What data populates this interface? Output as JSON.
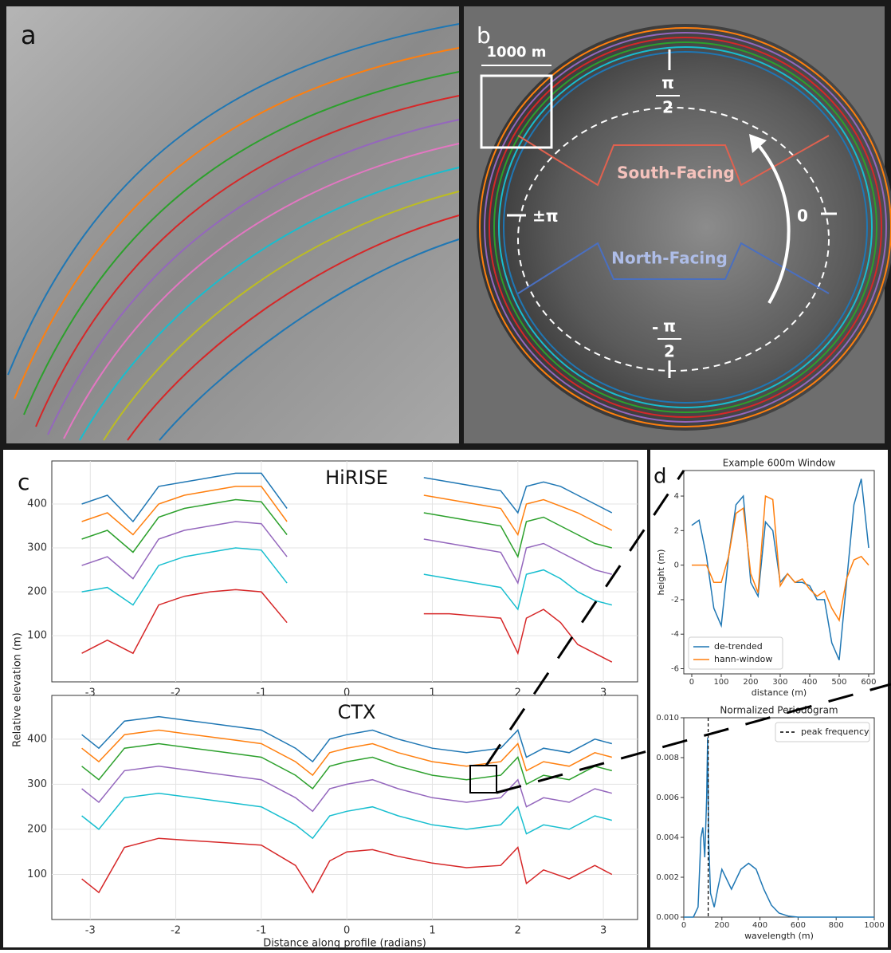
{
  "figure": {
    "panel_labels": [
      "a",
      "b",
      "c",
      "d"
    ],
    "scale_bar": "1000 m",
    "south": "South-Facing",
    "north": "North-Facing",
    "angle_top": {
      "numerator": "π",
      "denominator": "2"
    },
    "angle_left": "±π",
    "angle_right": "0",
    "angle_bottom": {
      "sign": "-",
      "numerator": "π",
      "denominator": "2"
    }
  },
  "chart_data": [
    {
      "type": "line",
      "title": "HiRISE",
      "ylabel": "Relative elevation (m)",
      "grid": true,
      "x": [
        -3.1,
        -2.8,
        -2.5,
        -2.2,
        -1.9,
        -1.6,
        -1.3,
        -1.0,
        -0.7,
        0,
        0.9,
        1.2,
        1.5,
        1.8,
        2.0,
        2.1,
        2.3,
        2.5,
        2.7,
        2.9,
        3.1
      ],
      "xlim": [
        -3.45,
        3.4
      ],
      "xticks": [
        -3,
        -2,
        -1,
        0,
        1,
        2,
        3
      ],
      "ylim": [
        -5,
        498
      ],
      "yticks": [
        100,
        200,
        300,
        400
      ],
      "series": [
        {
          "color": "#1f77b4",
          "values": [
            400,
            420,
            360,
            440,
            450,
            460,
            470,
            470,
            390,
            null,
            460,
            450,
            440,
            430,
            380,
            440,
            450,
            440,
            420,
            400,
            380
          ]
        },
        {
          "color": "#ff7f0e",
          "values": [
            360,
            380,
            330,
            400,
            420,
            430,
            440,
            440,
            360,
            null,
            420,
            410,
            400,
            390,
            330,
            400,
            410,
            395,
            380,
            360,
            340
          ]
        },
        {
          "color": "#2ca02c",
          "values": [
            320,
            340,
            290,
            370,
            390,
            400,
            410,
            405,
            330,
            null,
            380,
            370,
            360,
            350,
            280,
            360,
            370,
            350,
            330,
            310,
            300
          ]
        },
        {
          "color": "#9467bd",
          "values": [
            260,
            280,
            230,
            320,
            340,
            350,
            360,
            355,
            280,
            null,
            320,
            310,
            300,
            290,
            220,
            300,
            310,
            290,
            270,
            250,
            240
          ]
        },
        {
          "color": "#17becf",
          "values": [
            200,
            210,
            170,
            260,
            280,
            290,
            300,
            295,
            220,
            null,
            240,
            230,
            220,
            210,
            160,
            240,
            250,
            230,
            200,
            180,
            170
          ]
        },
        {
          "color": "#d62728",
          "values": [
            60,
            90,
            60,
            170,
            190,
            200,
            205,
            200,
            130,
            null,
            150,
            150,
            145,
            140,
            60,
            140,
            160,
            130,
            80,
            60,
            40
          ]
        }
      ]
    },
    {
      "type": "line",
      "title": "CTX",
      "xlabel": "Distance along profile (radians)",
      "grid": true,
      "x": [
        -3.1,
        -2.9,
        -2.6,
        -2.2,
        -1.8,
        -1.4,
        -1.0,
        -0.6,
        -0.4,
        -0.2,
        0,
        0.3,
        0.6,
        1.0,
        1.4,
        1.8,
        2.0,
        2.1,
        2.3,
        2.6,
        2.9,
        3.1
      ],
      "xlim": [
        -3.45,
        3.4
      ],
      "xticks": [
        -3,
        -2,
        -1,
        0,
        1,
        2,
        3
      ],
      "ylim": [
        0,
        497
      ],
      "yticks": [
        100,
        200,
        300,
        400
      ],
      "series": [
        {
          "color": "#1f77b4",
          "values": [
            410,
            380,
            440,
            450,
            440,
            430,
            420,
            380,
            350,
            400,
            410,
            420,
            400,
            380,
            370,
            380,
            420,
            360,
            380,
            370,
            400,
            390
          ]
        },
        {
          "color": "#ff7f0e",
          "values": [
            380,
            350,
            410,
            420,
            410,
            400,
            390,
            350,
            320,
            370,
            380,
            390,
            370,
            350,
            340,
            350,
            390,
            330,
            350,
            340,
            370,
            360
          ]
        },
        {
          "color": "#2ca02c",
          "values": [
            340,
            310,
            380,
            390,
            380,
            370,
            360,
            320,
            290,
            340,
            350,
            360,
            340,
            320,
            310,
            320,
            360,
            300,
            320,
            310,
            340,
            330
          ]
        },
        {
          "color": "#9467bd",
          "values": [
            290,
            260,
            330,
            340,
            330,
            320,
            310,
            270,
            240,
            290,
            300,
            310,
            290,
            270,
            260,
            270,
            310,
            250,
            270,
            260,
            290,
            280
          ]
        },
        {
          "color": "#17becf",
          "values": [
            230,
            200,
            270,
            280,
            270,
            260,
            250,
            210,
            180,
            230,
            240,
            250,
            230,
            210,
            200,
            210,
            250,
            190,
            210,
            200,
            230,
            220
          ]
        },
        {
          "color": "#d62728",
          "values": [
            90,
            60,
            160,
            180,
            175,
            170,
            165,
            120,
            60,
            130,
            150,
            155,
            140,
            125,
            115,
            120,
            160,
            80,
            110,
            90,
            120,
            100
          ]
        }
      ]
    },
    {
      "type": "line",
      "title": "Example 600m Window",
      "xlabel": "distance (m)",
      "ylabel": "height (m)",
      "grid": false,
      "legend": "lower left",
      "x": [
        0,
        25,
        50,
        75,
        100,
        125,
        150,
        175,
        200,
        225,
        250,
        275,
        300,
        325,
        350,
        375,
        400,
        425,
        450,
        475,
        500,
        525,
        550,
        575,
        600
      ],
      "xlim": [
        -27,
        619
      ],
      "xticks": [
        0,
        100,
        200,
        300,
        400,
        500,
        600
      ],
      "ylim": [
        -6.3,
        5.48
      ],
      "yticks": [
        -6,
        -4,
        -2,
        0,
        2,
        4
      ],
      "series": [
        {
          "name": "de-trended",
          "color": "#1f77b4",
          "values": [
            2.3,
            2.6,
            0.5,
            -2.5,
            -3.5,
            0.5,
            3.5,
            4,
            -1,
            -1.8,
            2.5,
            2,
            -1,
            -0.5,
            -1,
            -1,
            -1.2,
            -2,
            -2,
            -4.5,
            -5.5,
            -1,
            3.5,
            5,
            1
          ]
        },
        {
          "name": "hann-window",
          "color": "#ff7f0e",
          "values": [
            0,
            0,
            0,
            -1,
            -1,
            0.5,
            3,
            3.3,
            -0.5,
            -1.6,
            4,
            3.8,
            -1.2,
            -0.5,
            -1,
            -0.8,
            -1.4,
            -1.8,
            -1.5,
            -2.5,
            -3.2,
            -0.8,
            0.3,
            0.5,
            0
          ]
        }
      ]
    },
    {
      "type": "line",
      "title": "Normalized Periodogram",
      "xlabel": "wavelength (m)",
      "grid": false,
      "legend": "upper right",
      "x": [
        0,
        50,
        75,
        90,
        100,
        110,
        120,
        125,
        130,
        140,
        160,
        180,
        200,
        220,
        250,
        280,
        300,
        340,
        380,
        420,
        460,
        500,
        550,
        600,
        1000
      ],
      "xlim": [
        0,
        1000
      ],
      "xticks": [
        0,
        200,
        400,
        600,
        800,
        1000
      ],
      "ylim": [
        0,
        0.01
      ],
      "yticks": [
        {
          "value": 0,
          "label": "0.000"
        },
        {
          "value": 0.002,
          "label": "0.002"
        },
        {
          "value": 0.004,
          "label": "0.004"
        },
        {
          "value": 0.006,
          "label": "0.006"
        },
        {
          "value": 0.008,
          "label": "0.008"
        },
        {
          "value": 0.01,
          "label": "0.010"
        }
      ],
      "series": [
        {
          "color": "#1f77b4",
          "values": [
            0,
            0,
            0.0005,
            0.004,
            0.0045,
            0.003,
            0.006,
            0.009,
            0.004,
            0.0012,
            0.0005,
            0.0015,
            0.0024,
            0.002,
            0.0014,
            0.002,
            0.0024,
            0.0027,
            0.0024,
            0.0014,
            0.0006,
            0.0002,
            5e-05,
            0,
            0
          ]
        }
      ],
      "vlines": [
        {
          "x": 128,
          "name": "peak frequency",
          "color": "#000000"
        }
      ]
    }
  ]
}
